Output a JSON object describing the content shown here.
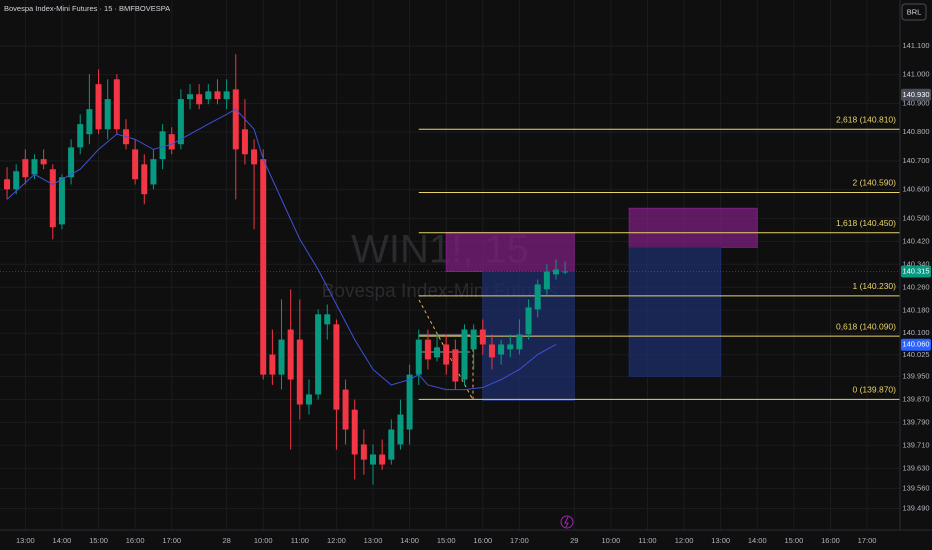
{
  "chart_data": {
    "type": "candlestick",
    "title": "Bovespa Index-Mini Futures · 15 · BMFBOVESPA",
    "currency": "BRL",
    "watermark_symbol": "WIN1!, 15",
    "watermark_name": "Bovespa Index-Mini Futures",
    "up_color": "#089981",
    "down_color": "#f23645",
    "open": [
      140.636,
      140.601,
      140.706,
      140.653,
      140.706,
      140.671,
      140.479,
      140.643,
      140.747,
      140.793,
      140.967,
      140.81,
      140.984,
      140.81,
      140.74,
      140.688,
      140.618,
      140.706,
      140.793,
      140.758,
      140.915,
      140.932,
      140.915,
      140.942,
      140.915,
      140.949,
      140.81,
      140.74,
      140.706,
      140.026,
      139.956,
      140.113,
      140.078,
      139.852,
      139.887,
      140.131,
      140.131,
      139.904,
      139.834,
      139.713,
      139.643,
      139.678,
      139.66,
      139.713,
      139.765,
      139.956,
      140.078,
      140.016,
      140.061,
      140.044,
      139.939,
      140.044,
      140.113,
      140.061,
      140.026,
      140.044,
      140.044,
      140.096,
      140.183,
      140.253,
      140.305,
      140.315
    ],
    "high": [
      140.678,
      140.688,
      140.74,
      140.723,
      140.74,
      140.688,
      140.653,
      140.775,
      140.862,
      141.002,
      141.019,
      140.984,
      141.002,
      140.845,
      140.775,
      140.723,
      140.74,
      140.828,
      140.817,
      140.949,
      140.967,
      140.967,
      140.967,
      140.984,
      140.984,
      141.071,
      140.915,
      140.775,
      140.74,
      140.113,
      140.218,
      140.253,
      140.218,
      139.939,
      140.183,
      140.2,
      140.148,
      139.939,
      139.869,
      139.765,
      139.713,
      139.73,
      139.8,
      139.869,
      139.991,
      140.113,
      140.113,
      140.096,
      140.096,
      140.078,
      140.131,
      140.131,
      140.148,
      140.096,
      140.078,
      140.096,
      140.148,
      140.218,
      140.287,
      140.34,
      140.357,
      140.35
    ],
    "low": [
      140.566,
      140.584,
      140.618,
      140.636,
      140.671,
      140.427,
      140.462,
      140.618,
      140.723,
      140.758,
      140.793,
      140.775,
      140.793,
      140.74,
      140.618,
      140.549,
      140.601,
      140.671,
      140.723,
      140.74,
      140.88,
      140.88,
      140.897,
      140.897,
      140.88,
      140.566,
      140.688,
      140.462,
      139.939,
      139.92,
      139.904,
      139.695,
      139.8,
      139.817,
      139.869,
      140.078,
      139.695,
      139.713,
      139.591,
      139.608,
      139.573,
      139.625,
      139.643,
      139.695,
      139.713,
      139.92,
      139.974,
      140.002,
      139.956,
      139.904,
      139.92,
      139.974,
      140.026,
      139.974,
      139.991,
      140.016,
      140.026,
      140.078,
      140.155,
      140.235,
      140.287,
      140.305
    ],
    "close": [
      140.601,
      140.664,
      140.643,
      140.706,
      140.688,
      140.469,
      140.643,
      140.747,
      140.828,
      140.88,
      140.81,
      140.915,
      140.81,
      140.758,
      140.636,
      140.584,
      140.706,
      140.803,
      140.74,
      140.915,
      140.932,
      140.897,
      140.942,
      140.915,
      140.942,
      140.74,
      140.723,
      140.688,
      139.956,
      139.956,
      140.078,
      139.939,
      139.852,
      139.887,
      140.166,
      140.166,
      139.834,
      139.765,
      139.678,
      139.66,
      139.678,
      139.643,
      139.765,
      139.817,
      139.956,
      140.078,
      140.009,
      140.051,
      139.991,
      139.932,
      140.113,
      140.113,
      140.061,
      140.016,
      140.061,
      140.061,
      140.096,
      140.19,
      140.27,
      140.315,
      140.322,
      140.315
    ],
    "ma": {
      "color": "#3f51d8",
      "x": [
        0,
        3,
        5,
        8,
        10,
        12,
        14,
        16,
        18,
        20,
        22,
        24,
        25,
        26,
        27,
        28,
        30,
        32,
        34,
        36,
        38,
        40,
        42,
        44,
        45,
        46,
        48,
        50,
        52,
        54,
        56,
        58,
        60
      ],
      "values": [
        140.566,
        140.653,
        140.618,
        140.671,
        140.74,
        140.793,
        140.775,
        140.74,
        140.758,
        140.793,
        140.828,
        140.862,
        140.88,
        140.845,
        140.81,
        140.706,
        140.566,
        140.427,
        140.322,
        140.2,
        140.078,
        139.974,
        139.92,
        139.939,
        139.956,
        139.92,
        139.904,
        139.904,
        139.911,
        139.939,
        139.974,
        140.026,
        140.061
      ]
    },
    "fib_color": "#e8d36a",
    "fib_start": 45,
    "fib_levels": [
      {
        "value": 140.81,
        "label": "2,618 (140.810)"
      },
      {
        "value": 140.59,
        "label": "2 (140.590)"
      },
      {
        "value": 140.45,
        "label": "1,618 (140.450)"
      },
      {
        "value": 140.23,
        "label": "1 (140.230)"
      },
      {
        "value": 140.09,
        "label": "0,618 (140.090)"
      },
      {
        "value": 139.87,
        "label": "0 (139.870)"
      }
    ],
    "zones": [
      {
        "x": [
          48,
          62
        ],
        "y": [
          140.315,
          140.451
        ],
        "color": "#7b1f7e"
      },
      {
        "x": [
          52,
          62
        ],
        "y": [
          139.866,
          140.315
        ],
        "color": "#1e2d6b"
      },
      {
        "x": [
          68,
          82
        ],
        "y": [
          140.399,
          140.535
        ],
        "color": "#7b1f7e"
      },
      {
        "x": [
          68,
          78
        ],
        "y": [
          139.95,
          140.399
        ],
        "color": "#1e2d6b"
      }
    ],
    "last_price": 140.315,
    "price_tags": [
      {
        "value": 140.93,
        "label": "140.930",
        "color": "#4a4d57"
      },
      {
        "value": 140.315,
        "label": "140.315",
        "color": "#089981"
      },
      {
        "value": 140.06,
        "label": "140.060",
        "color": "#2962ff"
      }
    ],
    "xlim": [
      -0.77,
      97.6
    ],
    "ylim": [
      139.45,
      141.26
    ],
    "xticks": [
      {
        "value": 2,
        "label": "13:00"
      },
      {
        "value": 6,
        "label": "14:00"
      },
      {
        "value": 10,
        "label": "15:00"
      },
      {
        "value": 14,
        "label": "16:00"
      },
      {
        "value": 18,
        "label": "17:00"
      },
      {
        "value": 24,
        "label": "28"
      },
      {
        "value": 28,
        "label": "10:00"
      },
      {
        "value": 32,
        "label": "11:00"
      },
      {
        "value": 36,
        "label": "12:00"
      },
      {
        "value": 40,
        "label": "13:00"
      },
      {
        "value": 44,
        "label": "14:00"
      },
      {
        "value": 48,
        "label": "15:00"
      },
      {
        "value": 52,
        "label": "16:00"
      },
      {
        "value": 56,
        "label": "17:00"
      },
      {
        "value": 62,
        "label": "29"
      },
      {
        "value": 66,
        "label": "10:00"
      },
      {
        "value": 70,
        "label": "11:00"
      },
      {
        "value": 74,
        "label": "12:00"
      },
      {
        "value": 78,
        "label": "13:00"
      },
      {
        "value": 82,
        "label": "14:00"
      },
      {
        "value": 86,
        "label": "15:00"
      },
      {
        "value": 90,
        "label": "16:00"
      },
      {
        "value": 94,
        "label": "17:00"
      }
    ],
    "yticks": [
      {
        "value": 141.1,
        "label": "141.100"
      },
      {
        "value": 141.0,
        "label": "141.000"
      },
      {
        "value": 140.9,
        "label": "140.900"
      },
      {
        "value": 140.8,
        "label": "140.800"
      },
      {
        "value": 140.7,
        "label": "140.700"
      },
      {
        "value": 140.6,
        "label": "140.600"
      },
      {
        "value": 140.5,
        "label": "140.500"
      },
      {
        "value": 140.42,
        "label": "140.420"
      },
      {
        "value": 140.34,
        "label": "140.340"
      },
      {
        "value": 140.26,
        "label": "140.260"
      },
      {
        "value": 140.18,
        "label": "140.180"
      },
      {
        "value": 140.1,
        "label": "140.100"
      },
      140.025,
      {
        "value": 139.95,
        "label": "139.950"
      },
      {
        "value": 139.87,
        "label": "139.870"
      },
      {
        "value": 139.79,
        "label": "139.790"
      },
      {
        "value": 139.71,
        "label": "139.710"
      },
      {
        "value": 139.63,
        "label": "139.630"
      },
      {
        "value": 139.56,
        "label": "139.560"
      },
      {
        "value": 139.49,
        "label": "139.490"
      }
    ],
    "grid": true
  }
}
